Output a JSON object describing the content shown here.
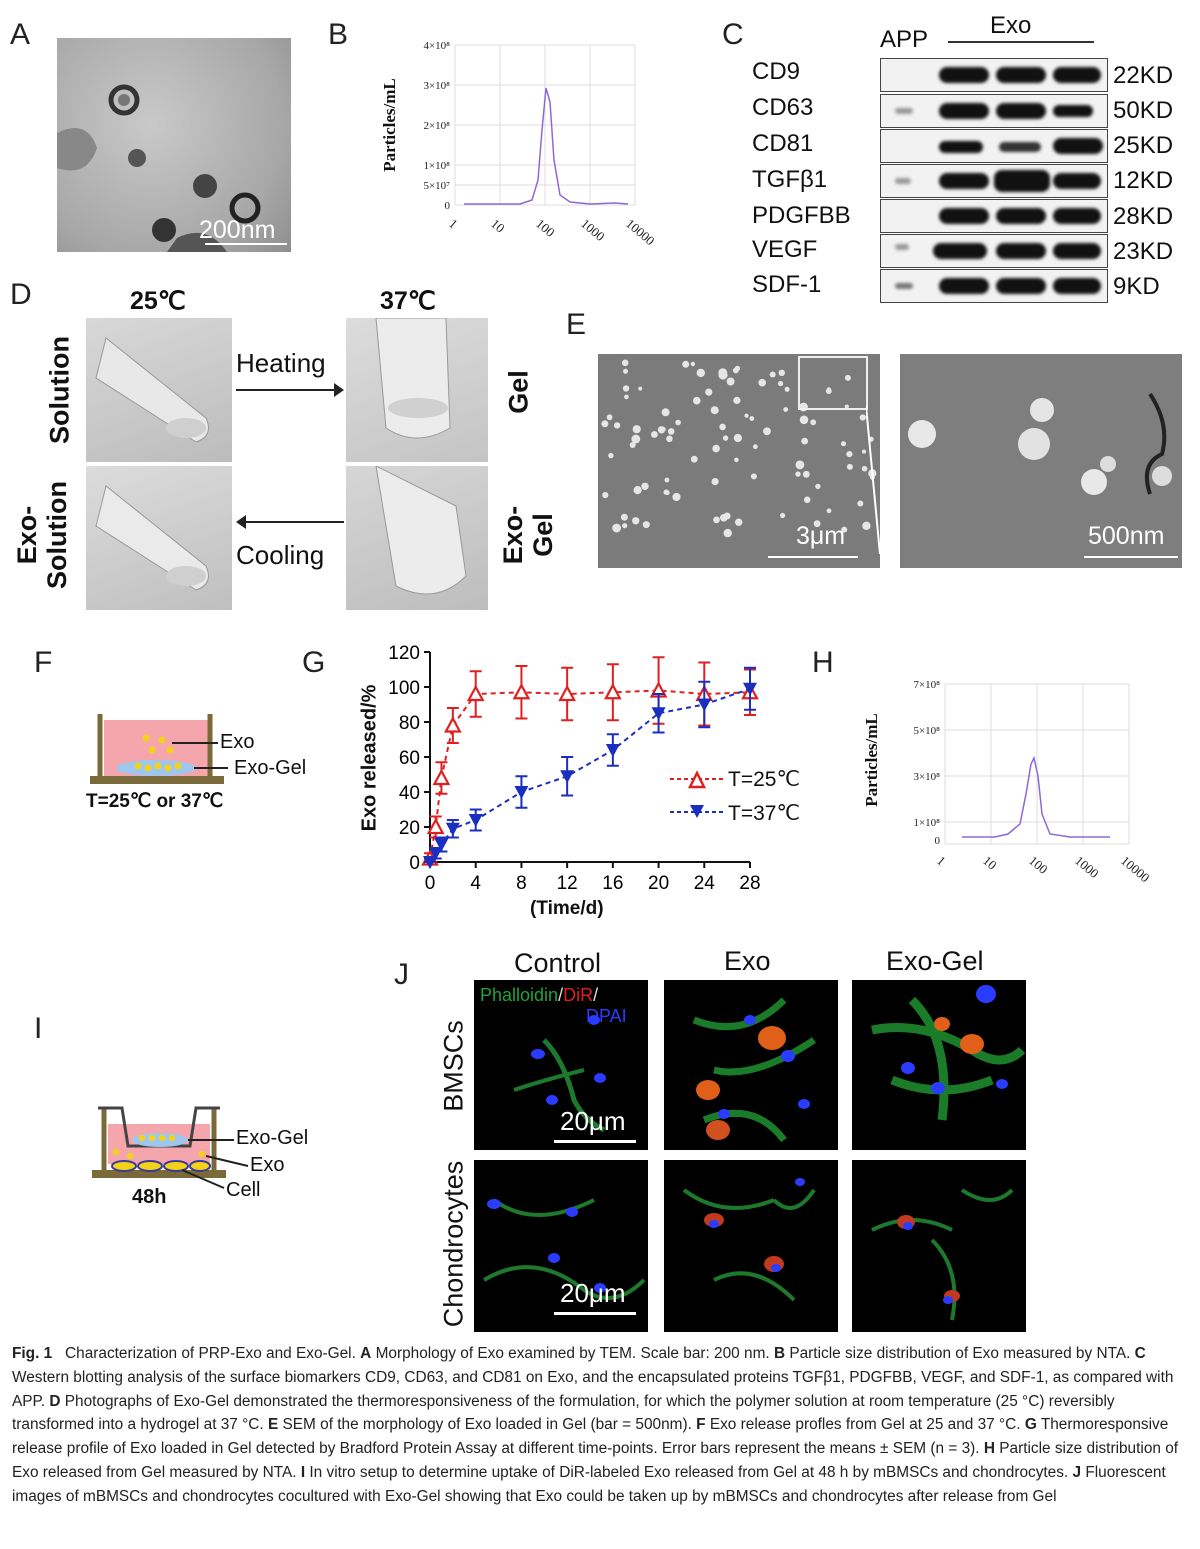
{
  "panels": {
    "A": {
      "label": "A",
      "scale_bar": "200nm"
    },
    "B": {
      "label": "B",
      "y_axis_label": "Particles/mL",
      "y_ticks": [
        "4×10⁸",
        "3×10⁸",
        "2×10⁸",
        "1×10⁸",
        "5×10⁷",
        "0"
      ],
      "x_ticks": [
        "1",
        "10",
        "100",
        "1000",
        "10000"
      ]
    },
    "C": {
      "label": "C",
      "header_app": "APP",
      "header_exo": "Exo",
      "rows": [
        {
          "protein": "CD9",
          "kd": "22KD"
        },
        {
          "protein": "CD63",
          "kd": "50KD"
        },
        {
          "protein": "CD81",
          "kd": "25KD"
        },
        {
          "protein": "TGFβ1",
          "kd": "12KD"
        },
        {
          "protein": "PDGFBB",
          "kd": "28KD"
        },
        {
          "protein": "VEGF",
          "kd": "23KD"
        },
        {
          "protein": "SDF-1",
          "kd": "9KD"
        }
      ]
    },
    "D": {
      "label": "D",
      "temp_left": "25℃",
      "temp_right": "37℃",
      "row1_left": "Solution",
      "row1_right": "Gel",
      "row2_left": "Exo-\nSolution",
      "row2_right": "Exo-\nGel",
      "arrow_top": "Heating",
      "arrow_bottom": "Cooling"
    },
    "E": {
      "label": "E",
      "scale_left": "3μm",
      "scale_right": "500nm"
    },
    "F": {
      "label": "F",
      "exo": "Exo",
      "exo_gel": "Exo-Gel",
      "temp": "T=25℃ or 37℃"
    },
    "G": {
      "label": "G",
      "ylabel": "Exo released/%",
      "xlabel": "(Time/d)",
      "legend_25": "T=25℃",
      "legend_37": "T=37℃"
    },
    "H": {
      "label": "H",
      "y_axis_label": "Particles/mL",
      "y_ticks": [
        "7×10⁸",
        "5×10⁸",
        "3×10⁸",
        "1×10⁸",
        "0"
      ],
      "x_ticks": [
        "1",
        "10",
        "100",
        "1000",
        "10000"
      ]
    },
    "I": {
      "label": "I",
      "exo_gel": "Exo-Gel",
      "exo": "Exo",
      "cell": "Cell",
      "time": "48h"
    },
    "J": {
      "label": "J",
      "col1": "Control",
      "col2": "Exo",
      "col3": "Exo-Gel",
      "row1": "BMSCs",
      "row2": "Chondrocytes",
      "stain_1": "Phalloidin",
      "stain_sep1": "/",
      "stain_2": "DiR",
      "stain_sep2": "/",
      "stain_3": "DPAI",
      "scale": "20μm",
      "stain_colors": {
        "phalloidin": "#1fa33a",
        "dir": "#e02020",
        "dpai": "#2a3cff"
      }
    }
  },
  "chart_data": {
    "type": "line",
    "title": "",
    "xlabel": "(Time/d)",
    "ylabel": "Exo released/%",
    "xlim": [
      0,
      28
    ],
    "ylim": [
      0,
      120
    ],
    "x_ticks": [
      0,
      4,
      8,
      12,
      16,
      20,
      24,
      28
    ],
    "y_ticks": [
      0,
      20,
      40,
      60,
      80,
      100,
      120
    ],
    "legend_position": "right",
    "series": [
      {
        "name": "T=25℃",
        "color": "#e02020",
        "marker": "triangle-up-open",
        "x": [
          0,
          0.5,
          1,
          2,
          4,
          8,
          12,
          16,
          20,
          24,
          28
        ],
        "y": [
          2,
          20,
          48,
          78,
          96,
          97,
          96,
          97,
          98,
          96,
          97
        ],
        "err": [
          3,
          6,
          9,
          10,
          13,
          15,
          15,
          16,
          19,
          18,
          13
        ]
      },
      {
        "name": "T=37℃",
        "color": "#1a2fc0",
        "marker": "triangle-down-filled",
        "x": [
          0,
          0.5,
          1,
          2,
          4,
          8,
          12,
          16,
          20,
          24,
          28
        ],
        "y": [
          0,
          5,
          10,
          19,
          24,
          40,
          49,
          64,
          85,
          90,
          99
        ],
        "err": [
          2,
          3,
          4,
          5,
          6,
          9,
          11,
          9,
          11,
          13,
          12
        ]
      }
    ]
  },
  "caption": {
    "fig": "Fig. 1",
    "intro": "Characterization of PRP-Exo and Exo-Gel.",
    "A_lbl": "A",
    "A_txt": "Morphology of Exo examined by TEM. Scale bar: 200 nm.",
    "B_lbl": "B",
    "B_txt": "Particle size distribution of Exo measured by NTA.",
    "C_lbl": "C",
    "C_txt": "Western blotting analysis of the surface biomarkers CD9, CD63, and CD81 on Exo, and the encapsulated proteins TGFβ1, PDGFBB, VEGF, and SDF-1, as compared with APP.",
    "D_lbl": "D",
    "D_txt": "Photographs of Exo-Gel demonstrated the thermoresponsiveness of the formulation, for which the polymer solution at room temperature (25 °C) reversibly transformed into a hydrogel at 37 °C.",
    "E_lbl": "E",
    "E_txt": "SEM of the morphology of Exo loaded in Gel (bar = 500nm).",
    "F_lbl": "F",
    "F_txt": "Exo release profles from Gel at 25 and 37 °C.",
    "G_lbl": "G",
    "G_txt": "Thermoresponsive release profile of Exo loaded in Gel detected by Bradford Protein Assay at different time-points. Error bars represent the means ± SEM (n = 3).",
    "H_lbl": "H",
    "H_txt": "Particle size distribution of Exo released from Gel measured by NTA.",
    "I_lbl": "I",
    "I_txt": "In vitro setup to determine uptake of DiR-labeled Exo released from Gel at 48 h by mBMSCs and chondrocytes.",
    "J_lbl": "J",
    "J_txt": "Fluorescent images of mBMSCs and chondrocytes cocultured with Exo-Gel showing that Exo could be taken up by mBMSCs and chondrocytes after release from Gel"
  }
}
